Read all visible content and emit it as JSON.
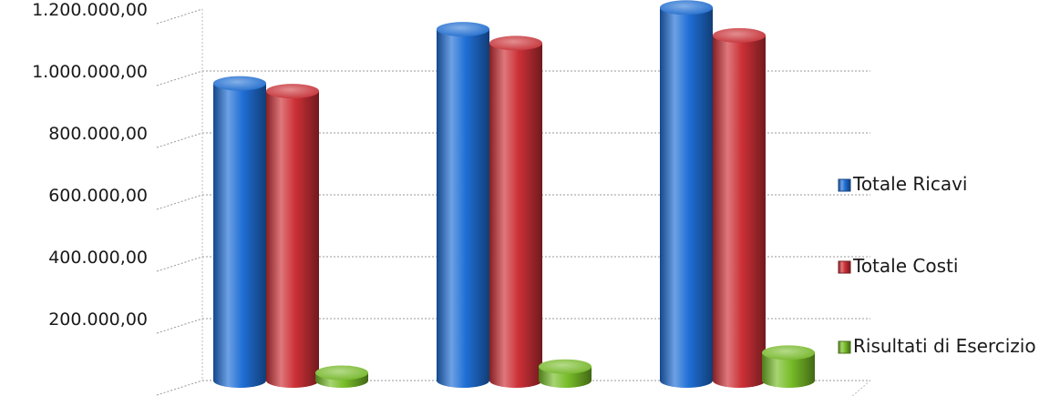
{
  "chart_data": {
    "type": "bar",
    "style": "3d-cylinder",
    "categories": [
      "",
      "",
      ""
    ],
    "series": [
      {
        "name": "Totale Ricavi",
        "color": "#1f6fd6",
        "values": [
          960000,
          1135000,
          1205000
        ]
      },
      {
        "name": "Totale Costi",
        "color": "#cc3036",
        "values": [
          935000,
          1090000,
          1115000
        ]
      },
      {
        "name": "Risultati di Esercizio",
        "color": "#78bd28",
        "values": [
          25000,
          45000,
          90000
        ]
      }
    ],
    "ylim": [
      0,
      1200000
    ],
    "yticks": [
      {
        "value": 200000,
        "label": "200.000,00"
      },
      {
        "value": 400000,
        "label": "400.000,00"
      },
      {
        "value": 600000,
        "label": "600.000,00"
      },
      {
        "value": 800000,
        "label": "800.000,00"
      },
      {
        "value": 1000000,
        "label": "1.000.000,00"
      },
      {
        "value": 1200000,
        "label": "1.200.000,00"
      }
    ],
    "grid": true,
    "legend_position": "right",
    "title": "",
    "xlabel": "",
    "ylabel": ""
  }
}
